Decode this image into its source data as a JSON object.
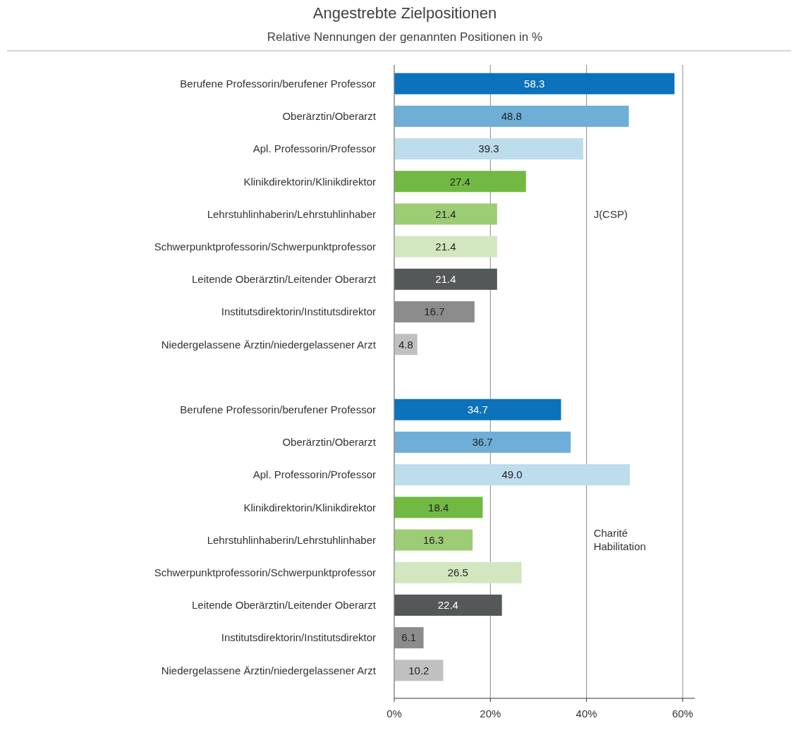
{
  "chart_data": {
    "type": "bar",
    "orientation": "horizontal",
    "title": "Angestrebte Zielpositionen",
    "subtitle": "Relative Nennungen der genannten Positionen in %",
    "categories": [
      "Berufene Professorin/berufener Professor",
      "Oberärztin/Oberarzt",
      "Apl. Professorin/Professor",
      "Klinikdirektorin/Klinikdirektor",
      "Lehrstuhlinhaberin/Lehrstuhlinhaber",
      "Schwerpunktprofessorin/Schwerpunktprofessor",
      "Leitende Oberärztin/Leitender Oberarzt",
      "Institutsdirektorin/Institutsdirektor",
      "Niedergelassene Ärztin/niedergelassener Arzt",
      null,
      "Berufene Professorin/berufener Professor",
      "Oberärztin/Oberarzt",
      "Apl. Professorin/Professor",
      "Klinikdirektorin/Klinikdirektor",
      "Lehrstuhlinhaberin/Lehrstuhlinhaber",
      "Schwerpunktprofessorin/Schwerpunktprofessor",
      "Leitende Oberärztin/Leitender Oberarzt",
      "Institutsdirektorin/Institutsdirektor",
      "Niedergelassene Ärztin/niedergelassener Arzt"
    ],
    "values": [
      58.3,
      48.8,
      39.3,
      27.4,
      21.4,
      21.4,
      21.4,
      16.7,
      4.8,
      null,
      34.7,
      36.7,
      49.0,
      18.4,
      16.3,
      26.5,
      22.4,
      6.1,
      10.2
    ],
    "value_labels": [
      "58.3",
      "48.8",
      "39.3",
      "27.4",
      "21.4",
      "21.4",
      "21.4",
      "16.7",
      "4.8",
      null,
      "34.7",
      "36.7",
      "49.0",
      "18.4",
      "16.3",
      "26.5",
      "22.4",
      "6.1",
      "10.2"
    ],
    "colors": [
      "#0b72bb",
      "#6faed6",
      "#bddcec",
      "#72b943",
      "#9ccc73",
      "#d2e7c0",
      "#555859",
      "#8c8c8c",
      "#c0c0c0",
      null,
      "#0b72bb",
      "#6faed6",
      "#bddcec",
      "#72b943",
      "#9ccc73",
      "#d2e7c0",
      "#555859",
      "#8c8c8c",
      "#c0c0c0"
    ],
    "xlim": [
      0,
      62.5
    ],
    "xticks": [
      {
        "value": 0,
        "label": "0%"
      },
      {
        "value": 20,
        "label": "20%"
      },
      {
        "value": 40,
        "label": "40%"
      },
      {
        "value": 60,
        "label": "60%"
      }
    ],
    "grid": "x",
    "annotations": [
      "J(CSP)",
      "Charité Habilitation"
    ]
  }
}
